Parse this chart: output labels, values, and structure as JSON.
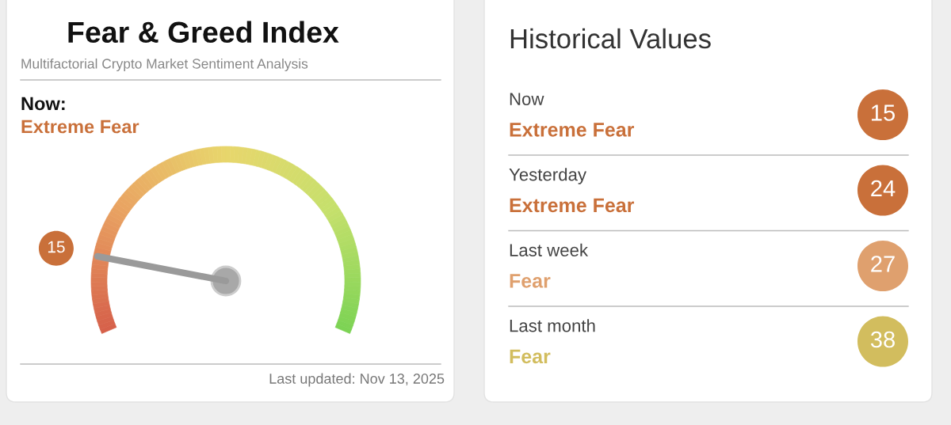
{
  "chart_data": [
    {
      "type": "other",
      "title": "Fear & Greed Index",
      "subtitle": "Multifactorial Crypto Market Sentiment Analysis",
      "annotations": [
        "Now:",
        "Extreme Fear",
        "Last updated: Nov 13, 2025"
      ],
      "values": [
        15
      ],
      "value_labels": [
        "15"
      ],
      "colors": [
        "#c9703a"
      ],
      "needle": true
    },
    {
      "type": "other",
      "title": "Historical Values",
      "categories": [
        "Now",
        "Yesterday",
        "Last week",
        "Last month"
      ],
      "values": [
        15,
        24,
        27,
        38
      ],
      "value_labels": [
        "15",
        "24",
        "27",
        "38"
      ],
      "annotations": [
        "Extreme Fear",
        "Extreme Fear",
        "Fear",
        "Fear"
      ],
      "colors": [
        "#c9703a",
        "#c9703a",
        "#dfa06e",
        "#d2bd5e"
      ]
    }
  ]
}
